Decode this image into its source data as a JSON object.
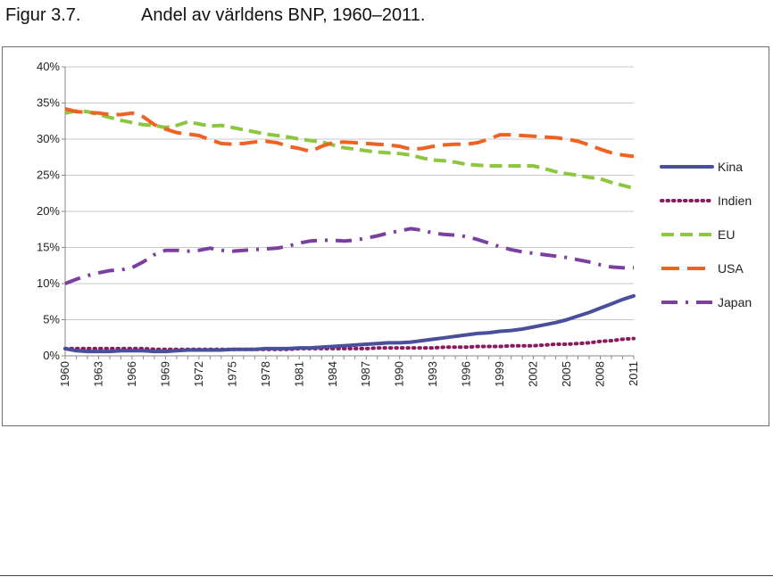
{
  "caption": {
    "number": "Figur 3.7.",
    "title": "Andel av världens BNP, 1960–2011."
  },
  "chart_data": {
    "type": "line",
    "title": "",
    "xlabel": "",
    "ylabel": "",
    "ylim": [
      0,
      40
    ],
    "yticks": [
      "0%",
      "5%",
      "10%",
      "15%",
      "20%",
      "25%",
      "30%",
      "35%",
      "40%"
    ],
    "xticks": [
      "1960",
      "1963",
      "1966",
      "1969",
      "1972",
      "1975",
      "1978",
      "1981",
      "1984",
      "1987",
      "1990",
      "1993",
      "1996",
      "1999",
      "2002",
      "2005",
      "2008",
      "2011"
    ],
    "grid": "horizontal",
    "legend": "right",
    "x": [
      1960,
      1961,
      1962,
      1963,
      1964,
      1965,
      1966,
      1967,
      1968,
      1969,
      1970,
      1971,
      1972,
      1973,
      1974,
      1975,
      1976,
      1977,
      1978,
      1979,
      1980,
      1981,
      1982,
      1983,
      1984,
      1985,
      1986,
      1987,
      1988,
      1989,
      1990,
      1991,
      1992,
      1993,
      1994,
      1995,
      1996,
      1997,
      1998,
      1999,
      2000,
      2001,
      2002,
      2003,
      2004,
      2005,
      2006,
      2007,
      2008,
      2009,
      2010,
      2011
    ],
    "series": [
      {
        "name": "Kina",
        "color": "#4a4f9c",
        "dash": "solid",
        "values": [
          1.0,
          0.7,
          0.6,
          0.6,
          0.6,
          0.7,
          0.7,
          0.7,
          0.6,
          0.6,
          0.7,
          0.8,
          0.8,
          0.8,
          0.8,
          0.9,
          0.9,
          0.9,
          1.0,
          1.0,
          1.0,
          1.1,
          1.1,
          1.2,
          1.3,
          1.4,
          1.5,
          1.6,
          1.7,
          1.8,
          1.8,
          1.9,
          2.1,
          2.3,
          2.5,
          2.7,
          2.9,
          3.1,
          3.2,
          3.4,
          3.5,
          3.7,
          4.0,
          4.3,
          4.6,
          5.0,
          5.5,
          6.0,
          6.6,
          7.2,
          7.8,
          8.3
        ]
      },
      {
        "name": "Indien",
        "color": "#8b1a5c",
        "dash": "dotted",
        "values": [
          1.0,
          1.0,
          1.0,
          1.0,
          1.0,
          1.0,
          1.0,
          1.0,
          0.9,
          0.9,
          0.9,
          0.9,
          0.9,
          0.9,
          0.9,
          0.9,
          0.9,
          0.9,
          0.9,
          0.9,
          0.9,
          1.0,
          1.0,
          1.0,
          1.0,
          1.0,
          1.0,
          1.0,
          1.1,
          1.1,
          1.1,
          1.1,
          1.1,
          1.1,
          1.2,
          1.2,
          1.2,
          1.3,
          1.3,
          1.3,
          1.4,
          1.4,
          1.4,
          1.5,
          1.6,
          1.6,
          1.7,
          1.8,
          2.0,
          2.1,
          2.3,
          2.4
        ]
      },
      {
        "name": "EU",
        "color": "#8dc63f",
        "dash": "dashed",
        "values": [
          33.6,
          33.9,
          33.8,
          33.4,
          33.0,
          32.6,
          32.3,
          32.0,
          31.9,
          31.6,
          31.9,
          32.4,
          32.1,
          31.8,
          31.9,
          31.6,
          31.3,
          31.0,
          30.7,
          30.5,
          30.3,
          30.0,
          29.8,
          29.6,
          29.2,
          28.8,
          28.6,
          28.4,
          28.2,
          28.1,
          28.0,
          27.8,
          27.4,
          27.1,
          27.0,
          26.8,
          26.5,
          26.4,
          26.3,
          26.3,
          26.3,
          26.3,
          26.3,
          25.9,
          25.5,
          25.2,
          25.0,
          24.7,
          24.5,
          24.0,
          23.6,
          23.2
        ]
      },
      {
        "name": "USA",
        "color": "#ef6322",
        "dash": "longdash",
        "values": [
          34.2,
          33.8,
          33.7,
          33.6,
          33.4,
          33.4,
          33.6,
          33.1,
          32.0,
          31.4,
          30.9,
          30.7,
          30.5,
          29.9,
          29.4,
          29.3,
          29.4,
          29.6,
          29.7,
          29.5,
          29.0,
          28.7,
          28.3,
          29.0,
          29.5,
          29.6,
          29.5,
          29.4,
          29.3,
          29.2,
          29.0,
          28.6,
          28.7,
          29.0,
          29.2,
          29.3,
          29.3,
          29.5,
          30.0,
          30.6,
          30.6,
          30.5,
          30.4,
          30.3,
          30.2,
          30.0,
          29.7,
          29.2,
          28.6,
          28.1,
          27.8,
          27.6
        ]
      },
      {
        "name": "Japan",
        "color": "#7b3fa0",
        "dash": "dashdot",
        "values": [
          10.0,
          10.6,
          11.1,
          11.5,
          11.8,
          11.9,
          12.2,
          13.0,
          14.0,
          14.6,
          14.6,
          14.5,
          14.6,
          14.9,
          14.6,
          14.5,
          14.6,
          14.7,
          14.8,
          14.9,
          15.2,
          15.6,
          15.9,
          16.0,
          16.0,
          15.9,
          16.0,
          16.3,
          16.6,
          17.0,
          17.3,
          17.6,
          17.4,
          17.0,
          16.8,
          16.7,
          16.5,
          16.1,
          15.6,
          15.1,
          14.7,
          14.4,
          14.2,
          14.0,
          13.8,
          13.6,
          13.3,
          13.0,
          12.6,
          12.3,
          12.2,
          12.2
        ]
      }
    ]
  }
}
